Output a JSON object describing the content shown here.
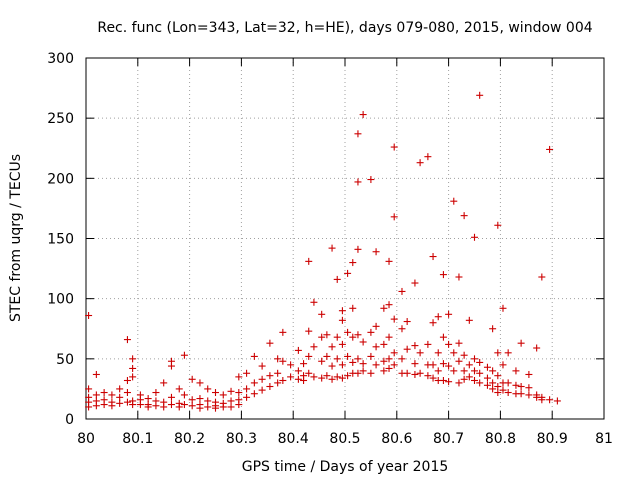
{
  "chart_data": {
    "type": "scatter",
    "title": "Rec. func (Lon=343, Lat=32, h=HE), days 079-080, 2015, window 004",
    "xlabel": "GPS time / Days of year 2015",
    "ylabel": "STEC from uqrg / TECUs",
    "xlim": [
      80,
      81
    ],
    "ylim": [
      0,
      300
    ],
    "xticks": [
      "80",
      "80.1",
      "80.2",
      "80.3",
      "80.4",
      "80.5",
      "80.6",
      "80.7",
      "80.8",
      "80.9",
      "81"
    ],
    "yticks": [
      "0",
      "50",
      "100",
      "150",
      "200",
      "250",
      "300"
    ],
    "grid": true,
    "marker": "+",
    "color": "#cc0000",
    "series": [
      {
        "points": [
          [
            80.005,
            86
          ],
          [
            80.005,
            25
          ],
          [
            80.005,
            18
          ],
          [
            80.005,
            14
          ],
          [
            80.005,
            10
          ],
          [
            80.02,
            37
          ],
          [
            80.02,
            20
          ],
          [
            80.02,
            15
          ],
          [
            80.02,
            11
          ],
          [
            80.035,
            22
          ],
          [
            80.035,
            16
          ],
          [
            80.035,
            12
          ],
          [
            80.05,
            20
          ],
          [
            80.05,
            14
          ],
          [
            80.05,
            11
          ],
          [
            80.065,
            25
          ],
          [
            80.065,
            18
          ],
          [
            80.065,
            13
          ],
          [
            80.08,
            66
          ],
          [
            80.08,
            32
          ],
          [
            80.08,
            22
          ],
          [
            80.08,
            14
          ],
          [
            80.09,
            50
          ],
          [
            80.09,
            42
          ],
          [
            80.09,
            35
          ],
          [
            80.09,
            15
          ],
          [
            80.09,
            12
          ],
          [
            80.105,
            20
          ],
          [
            80.105,
            16
          ],
          [
            80.105,
            12
          ],
          [
            80.12,
            17
          ],
          [
            80.12,
            12
          ],
          [
            80.12,
            10
          ],
          [
            80.135,
            22
          ],
          [
            80.135,
            15
          ],
          [
            80.135,
            11
          ],
          [
            80.15,
            30
          ],
          [
            80.15,
            14
          ],
          [
            80.15,
            10
          ],
          [
            80.165,
            48
          ],
          [
            80.165,
            44
          ],
          [
            80.165,
            18
          ],
          [
            80.165,
            12
          ],
          [
            80.18,
            25
          ],
          [
            80.18,
            13
          ],
          [
            80.18,
            10
          ],
          [
            80.19,
            53
          ],
          [
            80.19,
            20
          ],
          [
            80.19,
            12
          ],
          [
            80.205,
            33
          ],
          [
            80.205,
            16
          ],
          [
            80.205,
            11
          ],
          [
            80.22,
            30
          ],
          [
            80.22,
            17
          ],
          [
            80.22,
            12
          ],
          [
            80.22,
            9
          ],
          [
            80.235,
            25
          ],
          [
            80.235,
            15
          ],
          [
            80.235,
            10
          ],
          [
            80.25,
            22
          ],
          [
            80.25,
            14
          ],
          [
            80.25,
            11
          ],
          [
            80.25,
            9
          ],
          [
            80.265,
            20
          ],
          [
            80.265,
            13
          ],
          [
            80.265,
            10
          ],
          [
            80.28,
            23
          ],
          [
            80.28,
            15
          ],
          [
            80.28,
            10
          ],
          [
            80.295,
            35
          ],
          [
            80.295,
            22
          ],
          [
            80.295,
            16
          ],
          [
            80.295,
            12
          ],
          [
            80.31,
            38
          ],
          [
            80.31,
            25
          ],
          [
            80.31,
            18
          ],
          [
            80.325,
            52
          ],
          [
            80.325,
            30
          ],
          [
            80.325,
            21
          ],
          [
            80.34,
            44
          ],
          [
            80.34,
            33
          ],
          [
            80.34,
            24
          ],
          [
            80.355,
            63
          ],
          [
            80.355,
            36
          ],
          [
            80.355,
            27
          ],
          [
            80.37,
            50
          ],
          [
            80.37,
            38
          ],
          [
            80.37,
            30
          ],
          [
            80.38,
            72
          ],
          [
            80.38,
            48
          ],
          [
            80.38,
            32
          ],
          [
            80.395,
            45
          ],
          [
            80.395,
            35
          ],
          [
            80.41,
            57
          ],
          [
            80.41,
            40
          ],
          [
            80.41,
            33
          ],
          [
            80.42,
            46
          ],
          [
            80.42,
            36
          ],
          [
            80.42,
            32
          ],
          [
            80.43,
            131
          ],
          [
            80.43,
            73
          ],
          [
            80.43,
            52
          ],
          [
            80.43,
            38
          ],
          [
            80.44,
            97
          ],
          [
            80.44,
            60
          ],
          [
            80.44,
            35
          ],
          [
            80.455,
            87
          ],
          [
            80.455,
            68
          ],
          [
            80.455,
            48
          ],
          [
            80.455,
            34
          ],
          [
            80.465,
            70
          ],
          [
            80.465,
            52
          ],
          [
            80.465,
            36
          ],
          [
            80.475,
            142
          ],
          [
            80.475,
            60
          ],
          [
            80.475,
            44
          ],
          [
            80.475,
            33
          ],
          [
            80.485,
            116
          ],
          [
            80.485,
            68
          ],
          [
            80.485,
            50
          ],
          [
            80.485,
            35
          ],
          [
            80.495,
            90
          ],
          [
            80.495,
            82
          ],
          [
            80.495,
            62
          ],
          [
            80.495,
            45
          ],
          [
            80.495,
            34
          ],
          [
            80.505,
            121
          ],
          [
            80.505,
            72
          ],
          [
            80.505,
            52
          ],
          [
            80.505,
            36
          ],
          [
            80.515,
            130
          ],
          [
            80.515,
            92
          ],
          [
            80.515,
            68
          ],
          [
            80.515,
            47
          ],
          [
            80.515,
            38
          ],
          [
            80.525,
            237
          ],
          [
            80.525,
            197
          ],
          [
            80.525,
            141
          ],
          [
            80.525,
            70
          ],
          [
            80.525,
            50
          ],
          [
            80.525,
            38
          ],
          [
            80.535,
            253
          ],
          [
            80.535,
            64
          ],
          [
            80.535,
            46
          ],
          [
            80.535,
            40
          ],
          [
            80.55,
            199
          ],
          [
            80.55,
            72
          ],
          [
            80.55,
            52
          ],
          [
            80.55,
            38
          ],
          [
            80.56,
            139
          ],
          [
            80.56,
            77
          ],
          [
            80.56,
            60
          ],
          [
            80.56,
            45
          ],
          [
            80.575,
            92
          ],
          [
            80.575,
            62
          ],
          [
            80.575,
            48
          ],
          [
            80.575,
            40
          ],
          [
            80.585,
            131
          ],
          [
            80.585,
            95
          ],
          [
            80.585,
            68
          ],
          [
            80.585,
            50
          ],
          [
            80.585,
            42
          ],
          [
            80.595,
            226
          ],
          [
            80.595,
            168
          ],
          [
            80.595,
            83
          ],
          [
            80.595,
            55
          ],
          [
            80.595,
            45
          ],
          [
            80.61,
            106
          ],
          [
            80.61,
            75
          ],
          [
            80.61,
            50
          ],
          [
            80.61,
            38
          ],
          [
            80.62,
            81
          ],
          [
            80.62,
            58
          ],
          [
            80.62,
            38
          ],
          [
            80.635,
            113
          ],
          [
            80.635,
            61
          ],
          [
            80.635,
            46
          ],
          [
            80.635,
            37
          ],
          [
            80.645,
            213
          ],
          [
            80.645,
            55
          ],
          [
            80.645,
            38
          ],
          [
            80.66,
            218
          ],
          [
            80.66,
            62
          ],
          [
            80.66,
            45
          ],
          [
            80.66,
            36
          ],
          [
            80.67,
            135
          ],
          [
            80.67,
            80
          ],
          [
            80.67,
            45
          ],
          [
            80.67,
            34
          ],
          [
            80.68,
            85
          ],
          [
            80.68,
            55
          ],
          [
            80.68,
            40
          ],
          [
            80.68,
            32
          ],
          [
            80.69,
            120
          ],
          [
            80.69,
            68
          ],
          [
            80.69,
            46
          ],
          [
            80.69,
            32
          ],
          [
            80.7,
            87
          ],
          [
            80.7,
            62
          ],
          [
            80.7,
            44
          ],
          [
            80.7,
            31
          ],
          [
            80.71,
            181
          ],
          [
            80.71,
            55
          ],
          [
            80.71,
            40
          ],
          [
            80.72,
            118
          ],
          [
            80.72,
            63
          ],
          [
            80.72,
            48
          ],
          [
            80.72,
            30
          ],
          [
            80.73,
            169
          ],
          [
            80.73,
            53
          ],
          [
            80.73,
            40
          ],
          [
            80.73,
            33
          ],
          [
            80.74,
            82
          ],
          [
            80.74,
            45
          ],
          [
            80.74,
            35
          ],
          [
            80.75,
            151
          ],
          [
            80.75,
            50
          ],
          [
            80.75,
            40
          ],
          [
            80.75,
            32
          ],
          [
            80.76,
            269
          ],
          [
            80.76,
            47
          ],
          [
            80.76,
            38
          ],
          [
            80.76,
            30
          ],
          [
            80.775,
            43
          ],
          [
            80.775,
            34
          ],
          [
            80.775,
            28
          ],
          [
            80.785,
            75
          ],
          [
            80.785,
            40
          ],
          [
            80.785,
            30
          ],
          [
            80.785,
            25
          ],
          [
            80.795,
            161
          ],
          [
            80.795,
            55
          ],
          [
            80.795,
            36
          ],
          [
            80.795,
            27
          ],
          [
            80.795,
            22
          ],
          [
            80.805,
            92
          ],
          [
            80.805,
            45
          ],
          [
            80.805,
            30
          ],
          [
            80.805,
            24
          ],
          [
            80.815,
            55
          ],
          [
            80.815,
            30
          ],
          [
            80.815,
            22
          ],
          [
            80.83,
            40
          ],
          [
            80.83,
            28
          ],
          [
            80.83,
            21
          ],
          [
            80.84,
            63
          ],
          [
            80.84,
            27
          ],
          [
            80.84,
            21
          ],
          [
            80.855,
            37
          ],
          [
            80.855,
            26
          ],
          [
            80.855,
            20
          ],
          [
            80.87,
            59
          ],
          [
            80.87,
            20
          ],
          [
            80.87,
            18
          ],
          [
            80.88,
            118
          ],
          [
            80.88,
            18
          ],
          [
            80.88,
            16
          ],
          [
            80.895,
            224
          ],
          [
            80.895,
            16
          ],
          [
            80.91,
            15
          ]
        ]
      }
    ]
  }
}
